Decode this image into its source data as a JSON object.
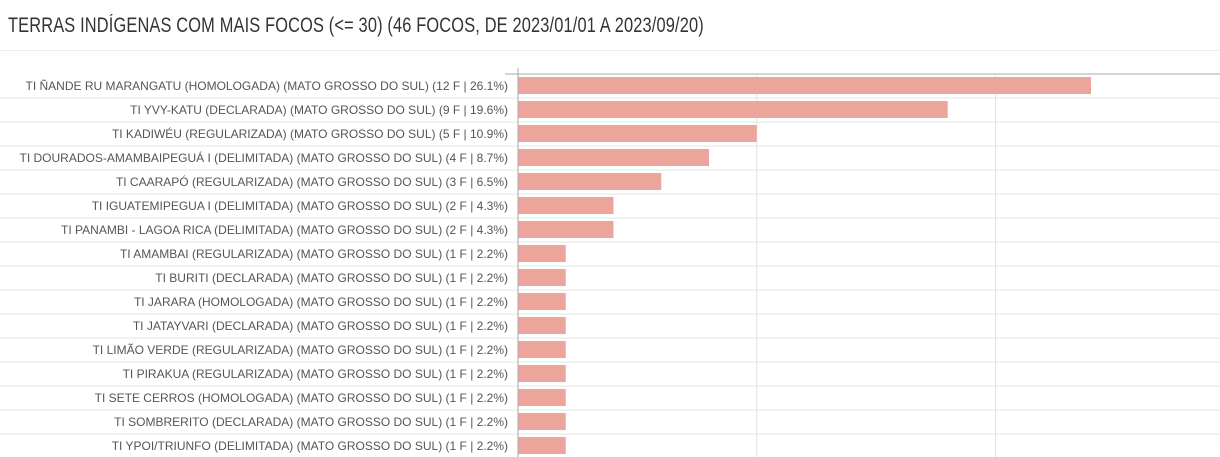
{
  "chart_data": {
    "type": "bar",
    "orientation": "horizontal",
    "title": "TERRAS INDÍGENAS COM MAIS FOCOS (<= 30) (46 FOCOS, DE 2023/01/01 A 2023/09/20)",
    "xlabel": "",
    "ylabel": "",
    "xlim": [
      0,
      15
    ],
    "grid": true,
    "bar_color": "#eda59b",
    "categories": [
      "TI ÑANDE RU MARANGATU (HOMOLOGADA) (MATO GROSSO DO SUL) (12 F | 26.1%)",
      "TI YVY-KATU (DECLARADA) (MATO GROSSO DO SUL) (9 F | 19.6%)",
      "TI KADIWÉU (REGULARIZADA) (MATO GROSSO DO SUL) (5 F | 10.9%)",
      "TI DOURADOS-AMAMBAIPEGUÁ I (DELIMITADA) (MATO GROSSO DO SUL) (4 F | 8.7%)",
      "TI CAARAPÓ (REGULARIZADA) (MATO GROSSO DO SUL) (3 F | 6.5%)",
      "TI IGUATEMIPEGUA I (DELIMITADA) (MATO GROSSO DO SUL) (2 F | 4.3%)",
      "TI PANAMBI - LAGOA RICA (DELIMITADA) (MATO GROSSO DO SUL) (2 F | 4.3%)",
      "TI AMAMBAI (REGULARIZADA) (MATO GROSSO DO SUL) (1 F | 2.2%)",
      "TI BURITI (DECLARADA) (MATO GROSSO DO SUL) (1 F | 2.2%)",
      "TI JARARA (HOMOLOGADA) (MATO GROSSO DO SUL) (1 F | 2.2%)",
      "TI JATAYVARI (DECLARADA) (MATO GROSSO DO SUL) (1 F | 2.2%)",
      "TI LIMÃO VERDE (REGULARIZADA) (MATO GROSSO DO SUL) (1 F | 2.2%)",
      "TI PIRAKUA (REGULARIZADA) (MATO GROSSO DO SUL) (1 F | 2.2%)",
      "TI SETE CERROS (HOMOLOGADA) (MATO GROSSO DO SUL) (1 F | 2.2%)",
      "TI SOMBRERITO (DECLARADA) (MATO GROSSO DO SUL) (1 F | 2.2%)",
      "TI YPOI/TRIUNFO (DELIMITADA) (MATO GROSSO DO SUL) (1 F | 2.2%)"
    ],
    "values": [
      12,
      9,
      5,
      4,
      3,
      2,
      2,
      1,
      1,
      1,
      1,
      1,
      1,
      1,
      1,
      1
    ]
  }
}
